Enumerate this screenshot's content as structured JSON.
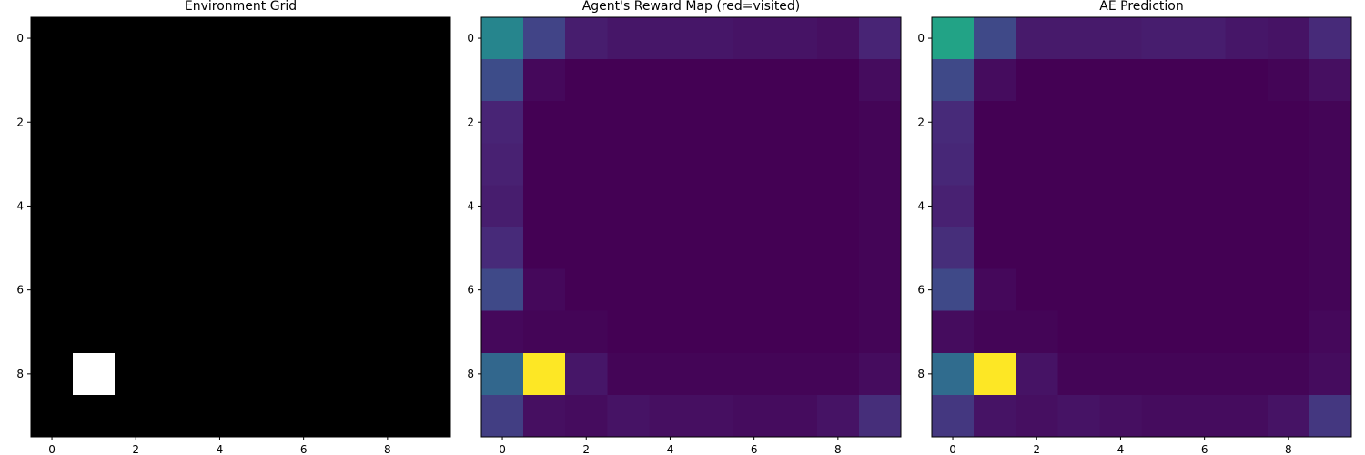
{
  "chart_data": [
    {
      "type": "heatmap",
      "title": "Environment Grid",
      "colormap": "gray",
      "x_ticks": [
        0,
        2,
        4,
        6,
        8
      ],
      "y_ticks": [
        0,
        2,
        4,
        6,
        8
      ],
      "xlim": [
        -0.5,
        9.5
      ],
      "ylim": [
        9.5,
        -0.5
      ],
      "grid": false,
      "values": [
        [
          0,
          0,
          0,
          0,
          0,
          0,
          0,
          0,
          0,
          0
        ],
        [
          0,
          0,
          0,
          0,
          0,
          0,
          0,
          0,
          0,
          0
        ],
        [
          0,
          0,
          0,
          0,
          0,
          0,
          0,
          0,
          0,
          0
        ],
        [
          0,
          0,
          0,
          0,
          0,
          0,
          0,
          0,
          0,
          0
        ],
        [
          0,
          0,
          0,
          0,
          0,
          0,
          0,
          0,
          0,
          0
        ],
        [
          0,
          0,
          0,
          0,
          0,
          0,
          0,
          0,
          0,
          0
        ],
        [
          0,
          0,
          0,
          0,
          0,
          0,
          0,
          0,
          0,
          0
        ],
        [
          0,
          0,
          0,
          0,
          0,
          0,
          0,
          0,
          0,
          0
        ],
        [
          0,
          1,
          0,
          0,
          0,
          0,
          0,
          0,
          0,
          0
        ],
        [
          0,
          0,
          0,
          0,
          0,
          0,
          0,
          0,
          0,
          0
        ]
      ]
    },
    {
      "type": "heatmap",
      "title": "Agent's Reward Map (red=visited)",
      "colormap": "viridis",
      "x_ticks": [
        0,
        2,
        4,
        6,
        8
      ],
      "y_ticks": [
        0,
        2,
        4,
        6,
        8
      ],
      "xlim": [
        -0.5,
        9.5
      ],
      "ylim": [
        9.5,
        -0.5
      ],
      "grid": false,
      "values": [
        [
          0.45,
          0.2,
          0.08,
          0.06,
          0.06,
          0.06,
          0.05,
          0.05,
          0.04,
          0.1
        ],
        [
          0.23,
          0.02,
          0.0,
          0.0,
          0.0,
          0.0,
          0.0,
          0.0,
          0.0,
          0.03
        ],
        [
          0.1,
          0.0,
          0.0,
          0.0,
          0.0,
          0.0,
          0.0,
          0.0,
          0.0,
          0.01
        ],
        [
          0.09,
          0.0,
          0.0,
          0.0,
          0.0,
          0.0,
          0.0,
          0.0,
          0.0,
          0.01
        ],
        [
          0.08,
          0.0,
          0.0,
          0.0,
          0.0,
          0.0,
          0.0,
          0.0,
          0.0,
          0.01
        ],
        [
          0.12,
          0.0,
          0.0,
          0.0,
          0.0,
          0.0,
          0.0,
          0.0,
          0.0,
          0.01
        ],
        [
          0.22,
          0.02,
          0.0,
          0.0,
          0.0,
          0.0,
          0.0,
          0.0,
          0.0,
          0.01
        ],
        [
          0.02,
          0.01,
          0.01,
          0.0,
          0.0,
          0.0,
          0.0,
          0.0,
          0.0,
          0.01
        ],
        [
          0.33,
          1.0,
          0.06,
          0.01,
          0.01,
          0.01,
          0.01,
          0.01,
          0.01,
          0.03
        ],
        [
          0.18,
          0.04,
          0.03,
          0.05,
          0.04,
          0.04,
          0.03,
          0.03,
          0.05,
          0.13
        ]
      ]
    },
    {
      "type": "heatmap",
      "title": "AE Prediction",
      "colormap": "viridis",
      "x_ticks": [
        0,
        2,
        4,
        6,
        8
      ],
      "y_ticks": [
        0,
        2,
        4,
        6,
        8
      ],
      "xlim": [
        -0.5,
        9.5
      ],
      "ylim": [
        9.5,
        -0.5
      ],
      "grid": false,
      "values": [
        [
          0.58,
          0.22,
          0.07,
          0.07,
          0.07,
          0.08,
          0.08,
          0.06,
          0.05,
          0.12
        ],
        [
          0.22,
          0.03,
          0.0,
          0.0,
          0.0,
          0.0,
          0.0,
          0.0,
          0.01,
          0.04
        ],
        [
          0.12,
          0.0,
          0.0,
          0.0,
          0.0,
          0.0,
          0.0,
          0.0,
          0.0,
          0.01
        ],
        [
          0.11,
          0.0,
          0.0,
          0.0,
          0.0,
          0.0,
          0.0,
          0.0,
          0.0,
          0.01
        ],
        [
          0.09,
          0.0,
          0.0,
          0.0,
          0.0,
          0.0,
          0.0,
          0.0,
          0.0,
          0.01
        ],
        [
          0.13,
          0.0,
          0.0,
          0.0,
          0.0,
          0.0,
          0.0,
          0.0,
          0.0,
          0.01
        ],
        [
          0.22,
          0.02,
          0.0,
          0.0,
          0.0,
          0.0,
          0.0,
          0.0,
          0.0,
          0.01
        ],
        [
          0.03,
          0.01,
          0.01,
          0.0,
          0.0,
          0.0,
          0.0,
          0.0,
          0.0,
          0.02
        ],
        [
          0.35,
          1.0,
          0.05,
          0.01,
          0.01,
          0.01,
          0.01,
          0.01,
          0.01,
          0.03
        ],
        [
          0.16,
          0.05,
          0.04,
          0.05,
          0.04,
          0.03,
          0.03,
          0.03,
          0.05,
          0.16
        ]
      ]
    }
  ]
}
